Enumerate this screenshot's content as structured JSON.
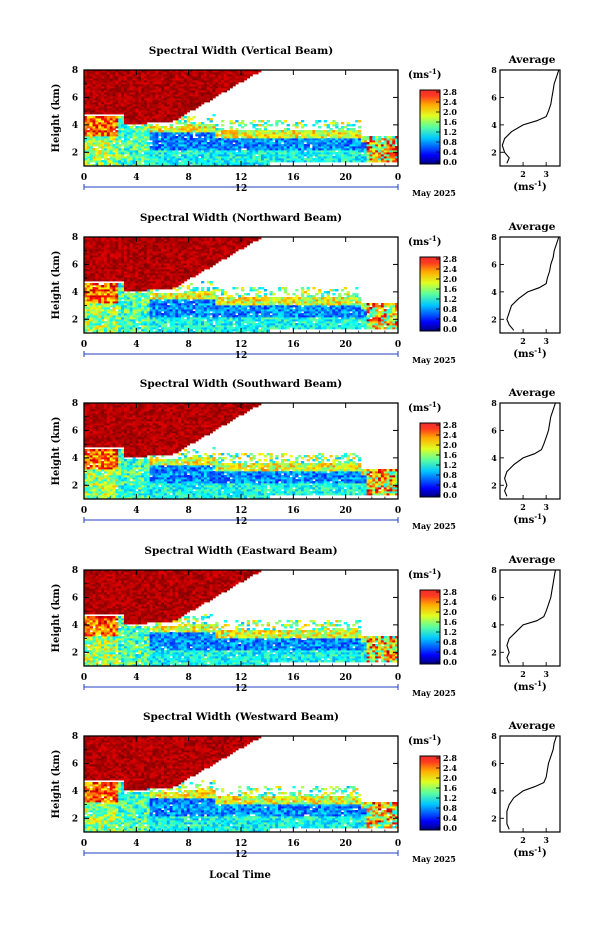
{
  "figure": {
    "xlabel": "Local Time",
    "ylabel": "Height (km)",
    "date_label": "May 2025",
    "bottom_label": "12",
    "unit_label": "(ms",
    "unit_exp": "-1",
    "avg_title": "Average"
  },
  "chart_data": [
    {
      "type": "heatmap",
      "title": "Spectral Width (Vertical Beam)",
      "xlabel": "Local Time",
      "ylabel": "Height (km)",
      "xlim": [
        0,
        24
      ],
      "ylim": [
        1,
        8
      ],
      "xticks": [
        "0",
        "4",
        "8",
        "12",
        "16",
        "20",
        "0"
      ],
      "yticks": [
        "2",
        "4",
        "6",
        "8"
      ],
      "colorbar": {
        "ticks": [
          "0.0",
          "0.4",
          "0.8",
          "1.2",
          "1.6",
          "2.0",
          "2.4",
          "2.8"
        ],
        "range": [
          0,
          3.0
        ]
      },
      "avg_profile": {
        "xlabel": "(ms-1)",
        "xticks": [
          "2",
          "3"
        ],
        "xlim": [
          1.0,
          3.6
        ],
        "yticks": [
          "2",
          "4",
          "6",
          "8"
        ],
        "height_km": [
          1.2,
          1.6,
          2.0,
          2.5,
          3.0,
          3.5,
          4.0,
          4.3,
          4.6,
          5.0,
          5.5,
          6.0,
          6.5,
          7.0,
          7.5,
          8.0
        ],
        "width": [
          1.3,
          1.4,
          1.2,
          1.1,
          1.2,
          1.5,
          2.0,
          2.6,
          3.0,
          3.1,
          3.2,
          3.25,
          3.3,
          3.35,
          3.45,
          3.55
        ]
      }
    },
    {
      "type": "heatmap",
      "title": "Spectral Width (Northward Beam)",
      "xlabel": "Local Time",
      "ylabel": "Height (km)",
      "xlim": [
        0,
        24
      ],
      "ylim": [
        1,
        8
      ],
      "xticks": [
        "0",
        "4",
        "8",
        "12",
        "16",
        "20",
        "0"
      ],
      "yticks": [
        "2",
        "4",
        "6",
        "8"
      ],
      "colorbar": {
        "ticks": [
          "0.0",
          "0.4",
          "0.8",
          "1.2",
          "1.6",
          "2.0",
          "2.4",
          "2.8"
        ],
        "range": [
          0,
          3.0
        ]
      },
      "avg_profile": {
        "xlabel": "(ms-1)",
        "xticks": [
          "2",
          "3"
        ],
        "xlim": [
          1.0,
          3.6
        ],
        "yticks": [
          "2",
          "4",
          "6",
          "8"
        ],
        "height_km": [
          1.2,
          1.6,
          2.0,
          2.5,
          3.0,
          3.5,
          4.0,
          4.3,
          4.6,
          5.0,
          5.5,
          6.0,
          6.5,
          7.0,
          7.5,
          8.0
        ],
        "width": [
          1.6,
          1.4,
          1.3,
          1.4,
          1.5,
          1.8,
          2.2,
          2.7,
          3.0,
          3.05,
          3.15,
          3.2,
          3.3,
          3.35,
          3.45,
          3.55
        ]
      }
    },
    {
      "type": "heatmap",
      "title": "Spectral Width (Southward Beam)",
      "xlabel": "Local Time",
      "ylabel": "Height (km)",
      "xlim": [
        0,
        24
      ],
      "ylim": [
        1,
        8
      ],
      "xticks": [
        "0",
        "4",
        "8",
        "12",
        "16",
        "20",
        "0"
      ],
      "yticks": [
        "2",
        "4",
        "6",
        "8"
      ],
      "colorbar": {
        "ticks": [
          "0.0",
          "0.4",
          "0.8",
          "1.2",
          "1.6",
          "2.0",
          "2.4",
          "2.8"
        ],
        "range": [
          0,
          3.0
        ]
      },
      "avg_profile": {
        "xlabel": "(ms-1)",
        "xticks": [
          "2",
          "3"
        ],
        "xlim": [
          1.0,
          3.6
        ],
        "yticks": [
          "2",
          "4",
          "6",
          "8"
        ],
        "height_km": [
          1.2,
          1.6,
          2.0,
          2.5,
          3.0,
          3.5,
          4.0,
          4.3,
          4.6,
          5.0,
          5.5,
          6.0,
          6.5,
          7.0,
          7.5,
          8.0
        ],
        "width": [
          1.3,
          1.2,
          1.3,
          1.2,
          1.3,
          1.6,
          2.0,
          2.5,
          2.8,
          2.9,
          3.0,
          3.1,
          3.15,
          3.2,
          3.3,
          3.4
        ]
      }
    },
    {
      "type": "heatmap",
      "title": "Spectral Width (Eastward Beam)",
      "xlabel": "Local Time",
      "ylabel": "Height (km)",
      "xlim": [
        0,
        24
      ],
      "ylim": [
        1,
        8
      ],
      "xticks": [
        "0",
        "4",
        "8",
        "12",
        "16",
        "20",
        "0"
      ],
      "yticks": [
        "2",
        "4",
        "6",
        "8"
      ],
      "colorbar": {
        "ticks": [
          "0.0",
          "0.4",
          "0.8",
          "1.2",
          "1.6",
          "2.0",
          "2.4",
          "2.8"
        ],
        "range": [
          0,
          3.0
        ]
      },
      "avg_profile": {
        "xlabel": "(ms-1)",
        "xticks": [
          "2",
          "3"
        ],
        "xlim": [
          1.0,
          3.6
        ],
        "yticks": [
          "2",
          "4",
          "6",
          "8"
        ],
        "height_km": [
          1.2,
          1.6,
          2.0,
          2.5,
          3.0,
          3.5,
          4.0,
          4.3,
          4.6,
          5.0,
          5.5,
          6.0,
          6.5,
          7.0,
          7.5,
          8.0
        ],
        "width": [
          1.4,
          1.3,
          1.4,
          1.3,
          1.4,
          1.7,
          2.0,
          2.6,
          2.9,
          3.0,
          3.1,
          3.2,
          3.25,
          3.3,
          3.35,
          3.4
        ]
      }
    },
    {
      "type": "heatmap",
      "title": "Spectral Width (Westward Beam)",
      "xlabel": "Local Time",
      "ylabel": "Height (km)",
      "xlim": [
        0,
        24
      ],
      "ylim": [
        1,
        8
      ],
      "xticks": [
        "0",
        "4",
        "8",
        "12",
        "16",
        "20",
        "0"
      ],
      "yticks": [
        "2",
        "4",
        "6",
        "8"
      ],
      "colorbar": {
        "ticks": [
          "0.0",
          "0.4",
          "0.8",
          "1.2",
          "1.6",
          "2.0",
          "2.4",
          "2.8"
        ],
        "range": [
          0,
          3.0
        ]
      },
      "avg_profile": {
        "xlabel": "(ms-1)",
        "xticks": [
          "2",
          "3"
        ],
        "xlim": [
          1.0,
          3.6
        ],
        "yticks": [
          "2",
          "4",
          "6",
          "8"
        ],
        "height_km": [
          1.2,
          1.6,
          2.0,
          2.5,
          3.0,
          3.5,
          4.0,
          4.3,
          4.6,
          5.0,
          5.5,
          6.0,
          6.5,
          7.0,
          7.5,
          8.0
        ],
        "width": [
          1.4,
          1.3,
          1.3,
          1.3,
          1.4,
          1.6,
          2.0,
          2.5,
          2.9,
          3.0,
          3.05,
          3.1,
          3.2,
          3.3,
          3.35,
          3.45
        ]
      }
    }
  ]
}
